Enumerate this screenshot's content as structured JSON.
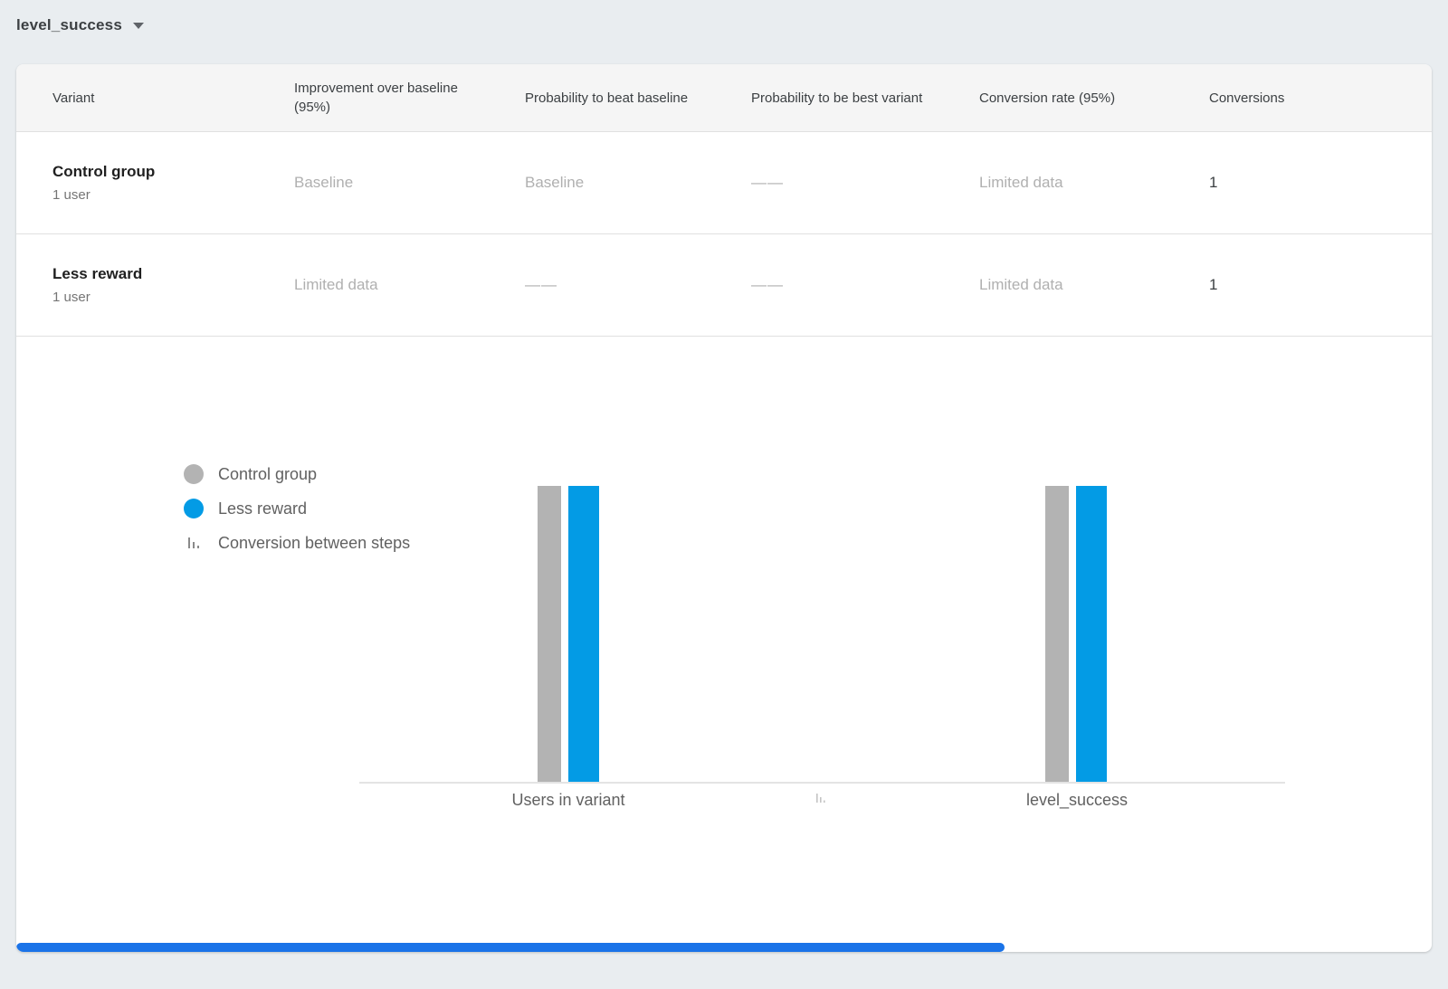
{
  "colors": {
    "control_gray": "#b3b3b3",
    "variant_blue": "#039be5",
    "scrollbar_blue": "#1a73e8"
  },
  "goal_selector": {
    "label": "level_success"
  },
  "table": {
    "columns": [
      "Variant",
      "Improvement over baseline (95%)",
      "Probability to beat baseline",
      "Probability to be best variant",
      "Conversion rate (95%)",
      "Conversions"
    ],
    "rows": [
      {
        "variant": "Control group",
        "users": "1 user",
        "improvement": "Baseline",
        "prob_beat_baseline": "Baseline",
        "prob_best_variant": "——",
        "conversion_rate": "Limited data",
        "conversions": "1"
      },
      {
        "variant": "Less reward",
        "users": "1 user",
        "improvement": "Limited data",
        "prob_beat_baseline": "——",
        "prob_best_variant": "——",
        "conversion_rate": "Limited data",
        "conversions": "1"
      }
    ]
  },
  "legend": [
    {
      "label": "Control group",
      "color": "#b3b3b3",
      "icon": "dot"
    },
    {
      "label": "Less reward",
      "color": "#039be5",
      "icon": "dot"
    },
    {
      "label": "Conversion between steps",
      "icon": "step-marker"
    }
  ],
  "chart_data": {
    "type": "bar",
    "title": "",
    "xlabel": "",
    "ylabel": "",
    "categories": [
      "Users in variant",
      "level_success"
    ],
    "series": [
      {
        "name": "Control group",
        "color": "#b3b3b3",
        "values": [
          1,
          1
        ]
      },
      {
        "name": "Less reward",
        "color": "#039be5",
        "values": [
          1,
          1
        ]
      }
    ],
    "ylim": [
      0,
      1
    ],
    "grid": false,
    "legend_position": "left"
  }
}
